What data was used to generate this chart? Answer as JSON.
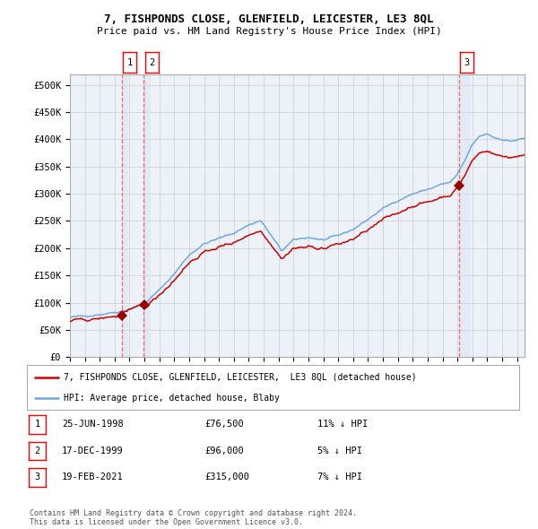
{
  "title": "7, FISHPONDS CLOSE, GLENFIELD, LEICESTER, LE3 8QL",
  "subtitle": "Price paid vs. HM Land Registry's House Price Index (HPI)",
  "xlim_start": 1995.0,
  "xlim_end": 2025.5,
  "ylim_min": 0,
  "ylim_max": 520000,
  "yticks": [
    0,
    50000,
    100000,
    150000,
    200000,
    250000,
    300000,
    350000,
    400000,
    450000,
    500000
  ],
  "ytick_labels": [
    "£0",
    "£50K",
    "£100K",
    "£150K",
    "£200K",
    "£250K",
    "£300K",
    "£350K",
    "£400K",
    "£450K",
    "£500K"
  ],
  "hpi_color": "#6fa8dc",
  "price_color": "#cc0000",
  "marker_color": "#990000",
  "vline_color": "#ff6666",
  "vband_color": "#cfddf0",
  "grid_color": "#cccccc",
  "bg_color": "#ffffff",
  "plot_bg_color": "#edf2f9",
  "sale1_year": 1998.48,
  "sale1_price": 76500,
  "sale1_label": "1",
  "sale2_year": 1999.96,
  "sale2_price": 96000,
  "sale2_label": "2",
  "sale3_year": 2021.12,
  "sale3_price": 315000,
  "sale3_label": "3",
  "legend_line1": "7, FISHPONDS CLOSE, GLENFIELD, LEICESTER,  LE3 8QL (detached house)",
  "legend_line2": "HPI: Average price, detached house, Blaby",
  "table_rows": [
    [
      "1",
      "25-JUN-1998",
      "£76,500",
      "11% ↓ HPI"
    ],
    [
      "2",
      "17-DEC-1999",
      "£96,000",
      "5% ↓ HPI"
    ],
    [
      "3",
      "19-FEB-2021",
      "£315,000",
      "7% ↓ HPI"
    ]
  ],
  "footer": "Contains HM Land Registry data © Crown copyright and database right 2024.\nThis data is licensed under the Open Government Licence v3.0."
}
